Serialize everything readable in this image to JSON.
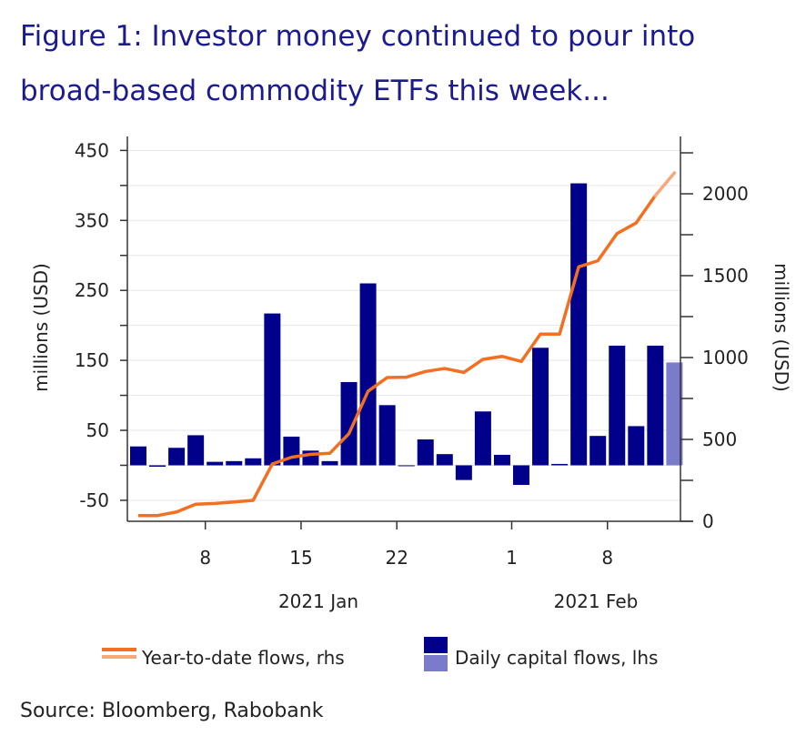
{
  "title_lines": [
    "Figure 1: Investor money continued to pour into",
    "broad-based commodity ETFs this week..."
  ],
  "source": "Source: Bloomberg, Rabobank",
  "colors": {
    "title": "#1b1b8f",
    "bar": "#00008b",
    "bar_estimate": "#7b7bcc",
    "line": "#f36f21",
    "line_estimate": "#f7a77a",
    "grid": "#e6e6e6"
  },
  "chart_data": {
    "type": "bar+line",
    "categories": [
      "2021-01-04",
      "2021-01-05",
      "2021-01-06",
      "2021-01-07",
      "2021-01-08",
      "2021-01-11",
      "2021-01-12",
      "2021-01-13",
      "2021-01-14",
      "2021-01-15",
      "2021-01-18",
      "2021-01-19",
      "2021-01-20",
      "2021-01-21",
      "2021-01-22",
      "2021-01-25",
      "2021-01-26",
      "2021-01-27",
      "2021-01-28",
      "2021-01-29",
      "2021-02-01",
      "2021-02-02",
      "2021-02-03",
      "2021-02-04",
      "2021-02-05",
      "2021-02-08",
      "2021-02-09",
      "2021-02-10",
      "2021-02-11"
    ],
    "series": [
      {
        "name": "Daily capital flows, lhs",
        "type": "bar",
        "axis": "left",
        "values": [
          27,
          -2,
          25,
          43,
          5,
          6,
          10,
          217,
          41,
          21,
          6,
          119,
          260,
          86,
          0,
          37,
          16,
          -21,
          77,
          15,
          -28,
          168,
          2,
          403,
          42,
          171,
          56,
          171,
          147
        ],
        "last_point_highlighted": true
      },
      {
        "name": "Year-to-date flows, rhs",
        "type": "line",
        "axis": "right",
        "values": [
          35,
          35,
          57,
          104,
          109,
          118,
          128,
          350,
          391,
          409,
          415,
          535,
          794,
          878,
          880,
          915,
          933,
          909,
          989,
          1007,
          976,
          1143,
          1143,
          1554,
          1591,
          1757,
          1822,
          1989,
          2128
        ],
        "last_point_highlighted": true
      }
    ],
    "x_ticks": [
      {
        "date": "2021-01-08",
        "label": "8"
      },
      {
        "date": "2021-01-15",
        "label": "15"
      },
      {
        "date": "2021-01-22",
        "label": "22"
      },
      {
        "date": "2021-02-01",
        "label": "1"
      },
      {
        "date": "2021-02-08",
        "label": "8"
      }
    ],
    "x_group_labels": [
      {
        "label": "2021 Jan",
        "from": "2021-01-04",
        "to": "2021-01-29"
      },
      {
        "label": "2021 Feb",
        "from": "2021-02-01",
        "to": "2021-02-11"
      }
    ],
    "y_left": {
      "label": "millions (USD)",
      "ylim": [
        -80,
        470
      ],
      "tick_labels": [
        -50,
        50,
        150,
        250,
        350,
        450
      ],
      "minor_step": 50
    },
    "y_right": {
      "label": "millions (USD)",
      "ylim": [
        0,
        2350
      ],
      "tick_labels": [
        0,
        500,
        1000,
        1500,
        2000
      ],
      "minor_step": 250
    },
    "grid": true,
    "legend_position": "bottom"
  }
}
